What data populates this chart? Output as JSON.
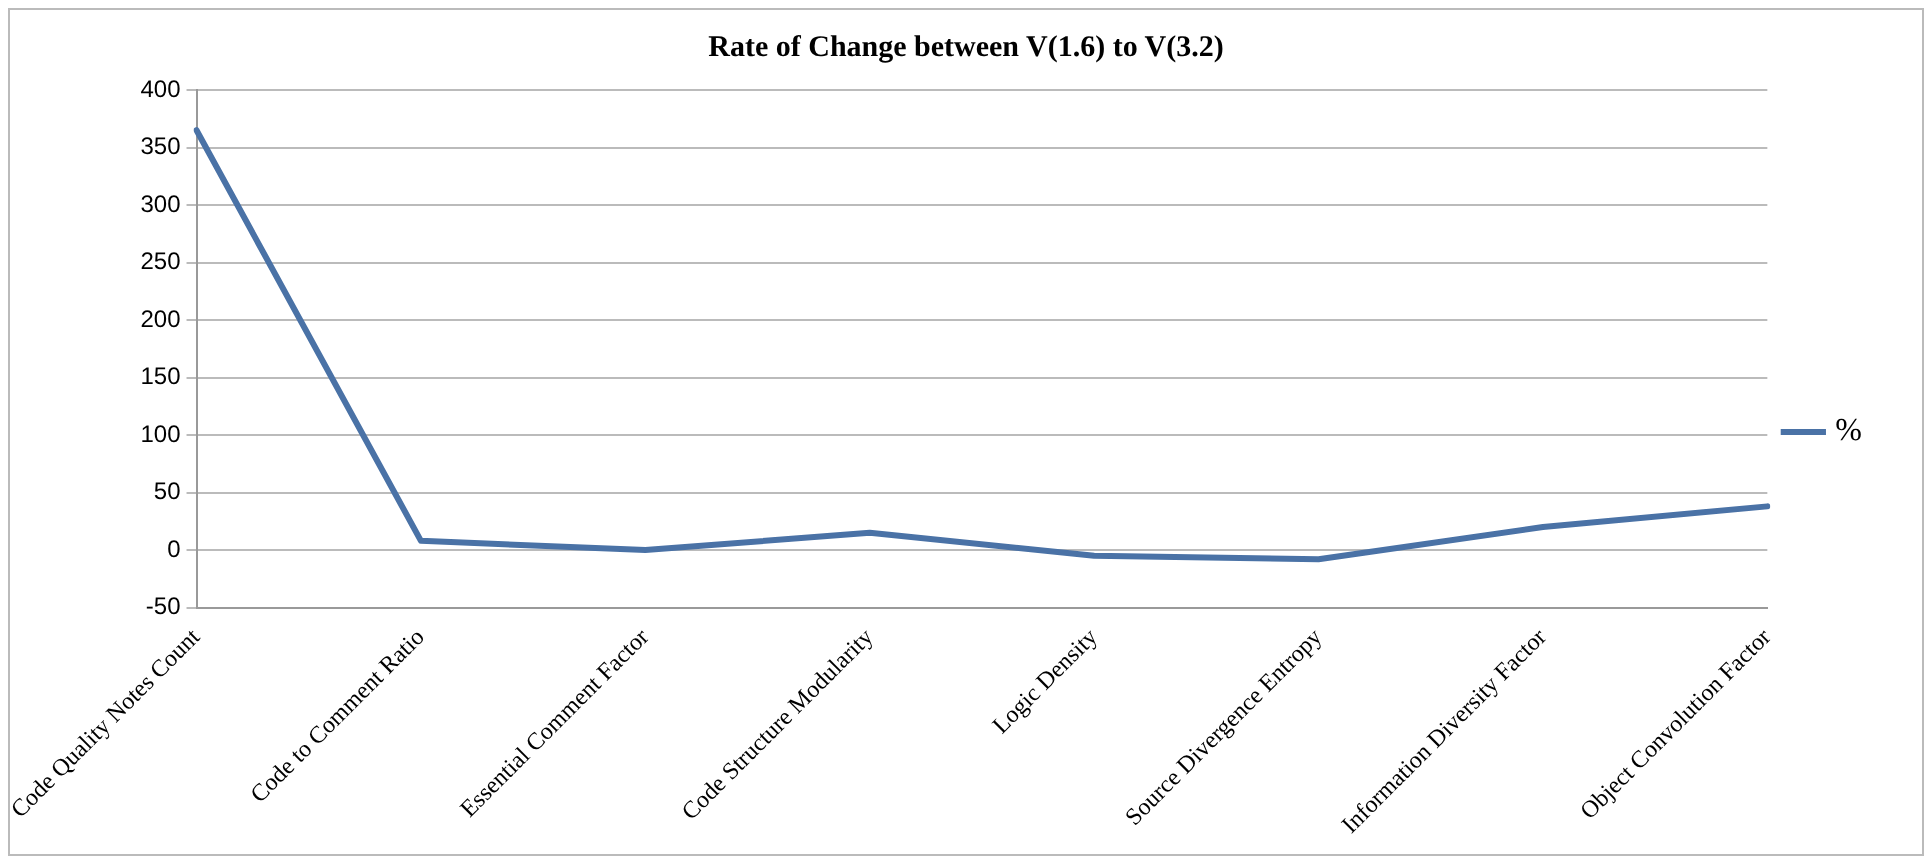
{
  "chart_data": {
    "type": "line",
    "title": "Rate of Change between V(1.6) to V(3.2)",
    "categories": [
      "Code Quality Notes Count",
      "Code to Comment Ratio",
      "Essential Comment Factor",
      "Code Structure Modularity",
      "Logic Density",
      "Source Divergence Entropy",
      "Information Diversity Factor",
      "Object Convolution Factor"
    ],
    "series": [
      {
        "name": "%",
        "color": "#4a72a6",
        "values": [
          365,
          8,
          0,
          15,
          -5,
          -8,
          20,
          38
        ]
      }
    ],
    "ylim": [
      -50,
      400
    ],
    "yticks": [
      -50,
      0,
      50,
      100,
      150,
      200,
      250,
      300,
      350,
      400
    ],
    "grid": "y",
    "legend": "right",
    "marker": "none",
    "line_style": "solid"
  }
}
